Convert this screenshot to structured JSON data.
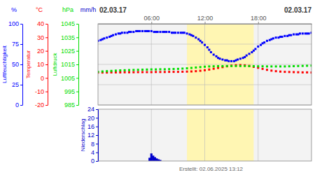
{
  "chart_data": [
    {
      "type": "scatter",
      "title": "02.03.17",
      "subtitle": "02.03.17",
      "annotations": [
        "Erstellt: 02.06.2025 13:12"
      ],
      "ylabel": "Luftfeuchtigkeit",
      "yunit": "%",
      "x": [
        0.0,
        0.3,
        0.5,
        0.7,
        1.0,
        1.3,
        1.5,
        1.7,
        2.0,
        2.3,
        2.5,
        2.7,
        3.0,
        3.3,
        3.5,
        3.7,
        4.0,
        4.3,
        4.5,
        4.7,
        5.0,
        5.3,
        5.5,
        5.7,
        6.0,
        6.3,
        6.5,
        6.7,
        7.0,
        7.3,
        7.5,
        7.7,
        8.0,
        8.3,
        8.5,
        8.7,
        9.0,
        9.3,
        9.5,
        9.7,
        10.0,
        10.3,
        10.5,
        10.7,
        11.0,
        11.3,
        11.5,
        11.7,
        12.0,
        12.3,
        12.5,
        12.7,
        13.0,
        13.3,
        13.5,
        13.7,
        14.0,
        14.3,
        14.5,
        14.7,
        15.0,
        15.3,
        15.5,
        15.7,
        16.0,
        16.3,
        16.5,
        16.7,
        17.0,
        17.3,
        17.5,
        17.7,
        18.0,
        18.3,
        18.5,
        18.7,
        19.0,
        19.3,
        19.5,
        19.7,
        20.0,
        20.3,
        20.5,
        20.7,
        21.0,
        21.3,
        21.5,
        21.7,
        22.0,
        22.3,
        22.5,
        22.7,
        23.0,
        23.3,
        23.5,
        23.7,
        24.0
      ],
      "values": [
        79,
        80,
        81,
        82,
        83,
        84,
        85,
        86,
        87,
        88,
        88,
        89,
        89,
        89,
        90,
        90,
        90,
        91,
        91,
        91,
        91,
        91,
        91,
        91,
        91,
        90,
        90,
        90,
        90,
        90,
        90,
        90,
        90,
        89,
        89,
        89,
        89,
        89,
        89,
        89,
        88,
        87,
        86,
        85,
        83,
        81,
        79,
        77,
        74,
        71,
        68,
        65,
        62,
        60,
        58,
        57,
        56,
        55,
        55,
        54,
        54,
        54,
        55,
        56,
        57,
        58,
        59,
        61,
        63,
        65,
        67,
        69,
        72,
        74,
        76,
        77,
        79,
        80,
        81,
        82,
        83,
        83,
        84,
        84,
        85,
        85,
        86,
        86,
        87,
        87,
        87,
        88,
        88,
        88,
        88,
        88,
        89
      ],
      "color": "#0000ff",
      "marker": "square",
      "xlim": [
        0,
        24
      ],
      "xticks": [
        {
          "value": 6,
          "label": "06:00"
        },
        {
          "value": 12,
          "label": "12:00"
        },
        {
          "value": 18,
          "label": "18:00"
        }
      ],
      "ylim": [
        0,
        100
      ],
      "yticks": [
        100,
        75,
        50,
        25,
        0
      ],
      "grid": true,
      "band_x": [
        10.0,
        17.5
      ]
    },
    {
      "type": "scatter",
      "ylabel": "Temperatur",
      "yunit": "°C",
      "x": [
        0.0,
        0.5,
        1.0,
        1.5,
        2.0,
        2.5,
        3.0,
        3.5,
        4.0,
        4.5,
        5.0,
        5.5,
        6.0,
        6.5,
        7.0,
        7.5,
        8.0,
        8.5,
        9.0,
        9.5,
        10.0,
        10.5,
        11.0,
        11.5,
        12.0,
        12.5,
        13.0,
        13.5,
        14.0,
        14.5,
        15.0,
        15.5,
        16.0,
        16.5,
        17.0,
        17.5,
        18.0,
        18.5,
        19.0,
        19.5,
        20.0,
        20.5,
        21.0,
        21.5,
        22.0,
        22.5,
        23.0,
        23.5,
        24.0
      ],
      "values": [
        4.0,
        4.0,
        4.0,
        4.1,
        4.1,
        4.1,
        4.2,
        4.2,
        4.2,
        4.3,
        4.3,
        4.3,
        4.3,
        4.4,
        4.4,
        4.4,
        4.5,
        4.5,
        4.5,
        4.6,
        4.7,
        4.8,
        5.0,
        5.3,
        5.7,
        6.2,
        6.8,
        7.4,
        8.0,
        8.6,
        9.1,
        9.4,
        9.5,
        9.3,
        8.9,
        8.2,
        7.5,
        6.7,
        6.0,
        5.4,
        5.0,
        4.7,
        4.5,
        4.4,
        4.3,
        4.2,
        4.1,
        4.1,
        4.0
      ],
      "color": "#ff0000",
      "marker": "square",
      "ylim": [
        -20,
        40
      ],
      "yticks": [
        40,
        30,
        20,
        10,
        0,
        -10,
        -20
      ]
    },
    {
      "type": "scatter",
      "ylabel": "Luftdruck",
      "yunit": "hPa",
      "x": [
        0.0,
        0.5,
        1.0,
        1.5,
        2.0,
        2.5,
        3.0,
        3.5,
        4.0,
        4.5,
        5.0,
        5.5,
        6.0,
        6.5,
        7.0,
        7.5,
        8.0,
        8.5,
        9.0,
        9.5,
        10.0,
        10.5,
        11.0,
        11.5,
        12.0,
        12.5,
        13.0,
        13.5,
        14.0,
        14.5,
        15.0,
        15.5,
        16.0,
        16.5,
        17.0,
        17.5,
        18.0,
        18.5,
        19.0,
        19.5,
        20.0,
        20.5,
        21.0,
        21.5,
        22.0,
        22.5,
        23.0,
        23.5,
        24.0
      ],
      "values": [
        1009.5,
        1009.8,
        1010.0,
        1010.2,
        1010.4,
        1010.6,
        1010.7,
        1010.8,
        1010.9,
        1011.0,
        1011.1,
        1011.2,
        1011.3,
        1011.3,
        1011.4,
        1011.4,
        1011.5,
        1011.6,
        1011.7,
        1011.9,
        1012.1,
        1012.4,
        1012.7,
        1013.0,
        1013.3,
        1013.5,
        1013.6,
        1013.7,
        1013.7,
        1013.8,
        1013.8,
        1013.8,
        1013.8,
        1013.8,
        1013.7,
        1013.7,
        1013.6,
        1013.6,
        1013.5,
        1013.5,
        1013.5,
        1013.5,
        1013.5,
        1013.6,
        1013.7,
        1013.8,
        1013.9,
        1014.0,
        1014.1
      ],
      "color": "#00dd00",
      "marker": "square",
      "ylim": [
        985,
        1045
      ],
      "yticks": [
        1045,
        1035,
        1025,
        1015,
        1005,
        995,
        985
      ]
    },
    {
      "type": "bar",
      "ylabel": "Niederschlag",
      "yunit": "mm/h",
      "x": [
        5.8,
        6.0,
        6.2,
        6.4,
        6.6,
        6.8,
        7.0
      ],
      "values": [
        1.5,
        3.5,
        2.5,
        1.8,
        1.2,
        0.8,
        0.5
      ],
      "color": "#0000cc",
      "xlim": [
        0,
        24
      ],
      "ylim": [
        0,
        24
      ],
      "yticks": [
        24,
        20,
        16,
        12,
        8,
        4,
        0
      ],
      "band_x": [
        10.0,
        17.5
      ]
    }
  ]
}
